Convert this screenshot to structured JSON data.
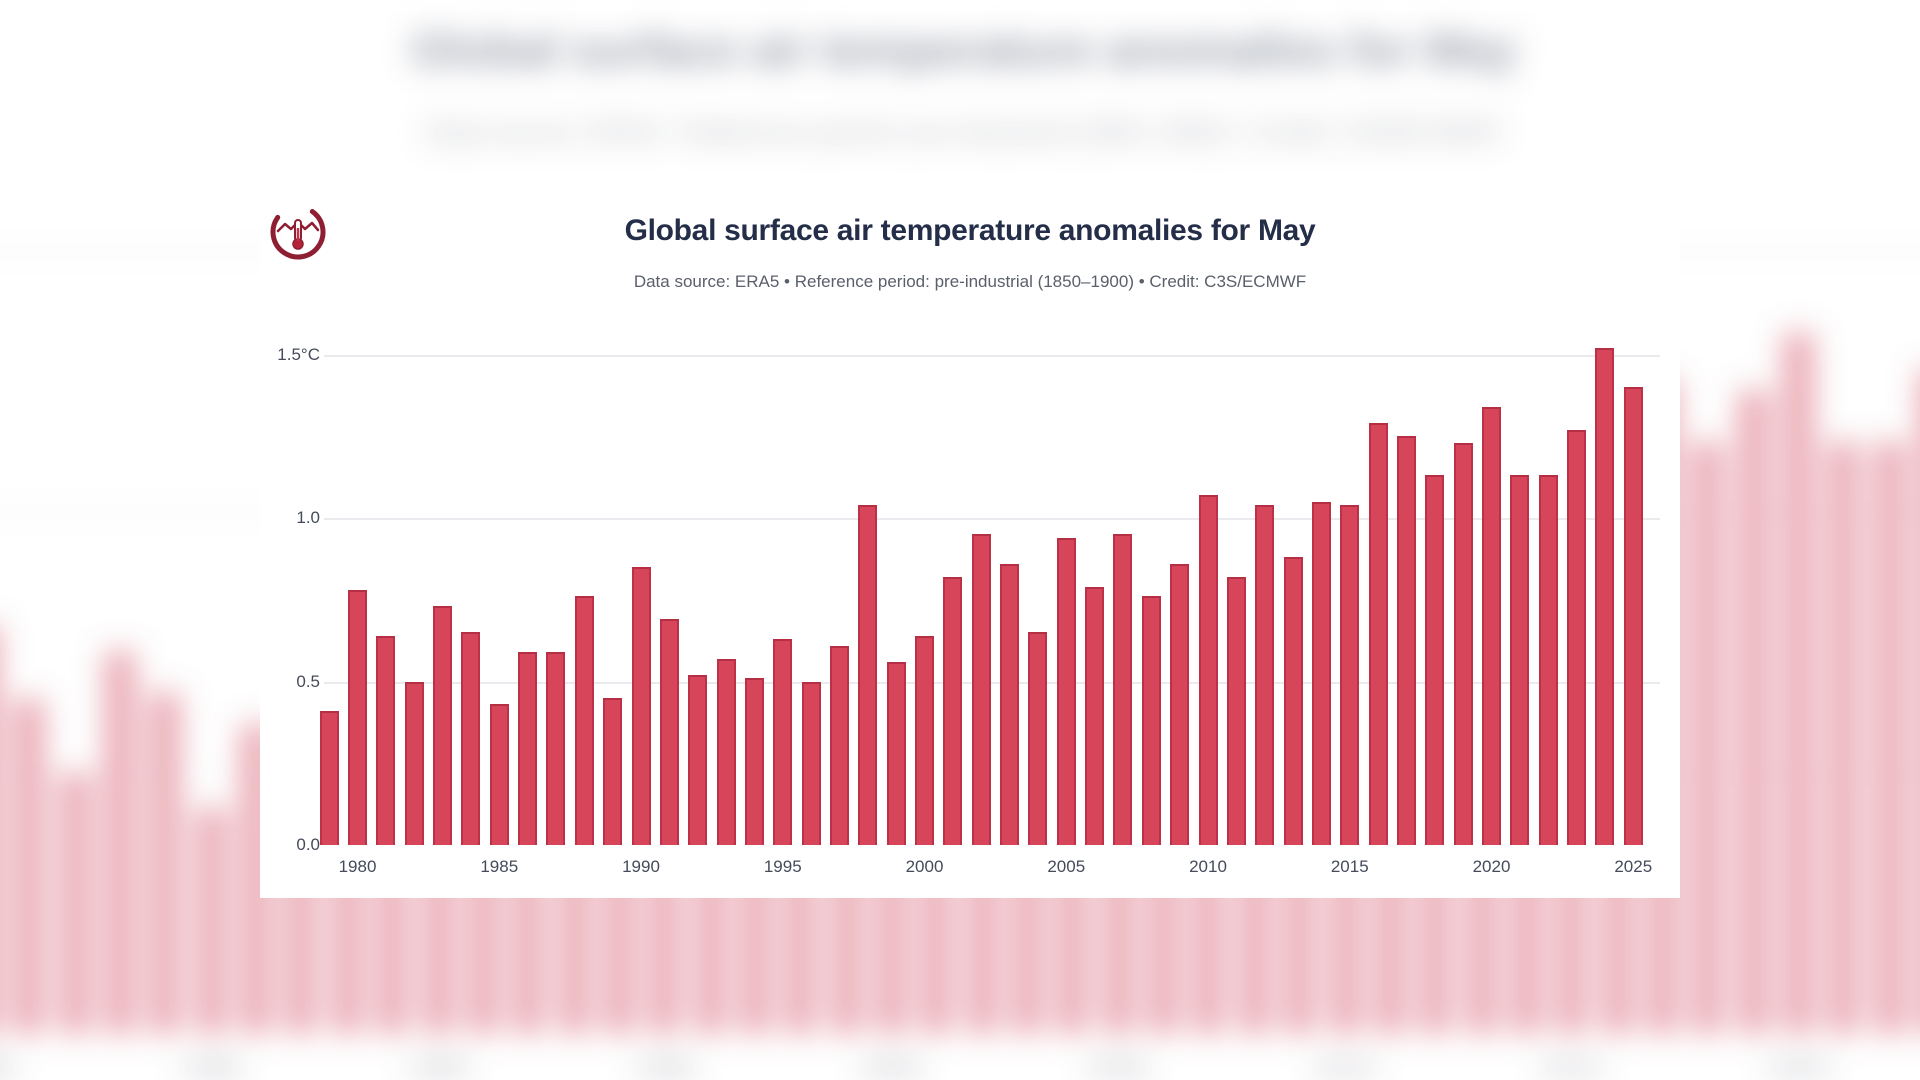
{
  "card": {
    "title": "Global surface air temperature anomalies for May",
    "subtitle": "Data source: ERA5 • Reference period: pre-industrial (1850–1900) • Credit: C3S/ECMWF",
    "logo": "c3s-climate-pulse-logo"
  },
  "chart_data": {
    "type": "bar",
    "title": "Global surface air temperature anomalies for May",
    "subtitle": "Data source: ERA5 • Reference period: pre-industrial (1850–1900) • Credit: C3S/ECMWF",
    "unit": "°C",
    "x": [
      1979,
      1980,
      1981,
      1982,
      1983,
      1984,
      1985,
      1986,
      1987,
      1988,
      1989,
      1990,
      1991,
      1992,
      1993,
      1994,
      1995,
      1996,
      1997,
      1998,
      1999,
      2000,
      2001,
      2002,
      2003,
      2004,
      2005,
      2006,
      2007,
      2008,
      2009,
      2010,
      2011,
      2012,
      2013,
      2014,
      2015,
      2016,
      2017,
      2018,
      2019,
      2020,
      2021,
      2022,
      2023,
      2024,
      2025
    ],
    "values": [
      0.41,
      0.78,
      0.64,
      0.5,
      0.73,
      0.65,
      0.43,
      0.59,
      0.59,
      0.76,
      0.45,
      0.85,
      0.69,
      0.52,
      0.57,
      0.51,
      0.63,
      0.5,
      0.61,
      1.04,
      0.56,
      0.64,
      0.82,
      0.95,
      0.86,
      0.65,
      0.94,
      0.79,
      0.95,
      0.76,
      0.86,
      1.07,
      0.82,
      1.04,
      0.88,
      1.05,
      1.04,
      1.29,
      1.25,
      1.13,
      1.23,
      1.34,
      1.13,
      1.13,
      1.27,
      1.52,
      1.4
    ],
    "xlabel": "",
    "ylabel": "",
    "ylim": [
      0,
      1.55
    ],
    "grid": true,
    "legend": "none",
    "yticks": [
      "0.0",
      "0.5",
      "1.0",
      "1.5°C"
    ],
    "ytick_values": [
      0,
      0.5,
      1.0,
      1.5
    ],
    "xticks": [
      1980,
      1985,
      1990,
      1995,
      2000,
      2005,
      2010,
      2015,
      2020,
      2025
    ],
    "bar_color": "#d7455b",
    "bar_edge_color": "#bc3148",
    "gridline_color": "#eaebee",
    "title_color": "#242e49",
    "subtitle_color": "#5a5f6b",
    "axis_label_color": "#454b5a",
    "logo_color": "#8e1e31"
  }
}
